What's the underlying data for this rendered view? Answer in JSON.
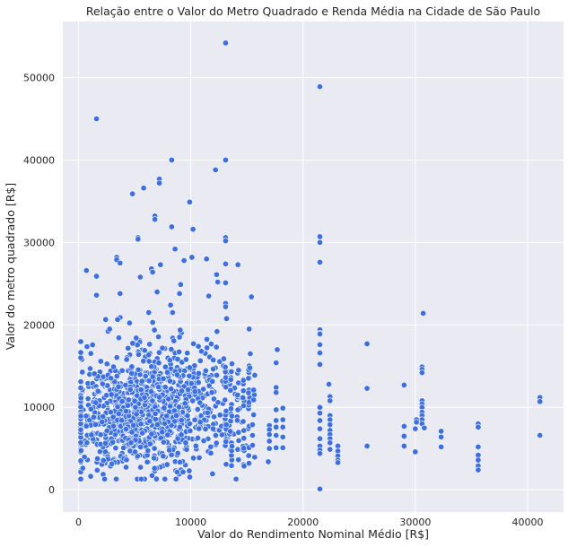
{
  "chart_data": {
    "type": "scatter",
    "title": "Relação entre o Valor do Metro Quadrado e Renda Média na Cidade de São Paulo",
    "xlabel": "Valor do Rendimento Nominal Médio [R$]",
    "ylabel": "Valor do metro quadrado [R$]",
    "xlim": [
      -1400,
      43200
    ],
    "ylim": [
      -2700,
      56800
    ],
    "x_ticks": [
      0,
      10000,
      20000,
      30000,
      40000
    ],
    "y_ticks": [
      0,
      10000,
      20000,
      30000,
      40000,
      50000
    ],
    "grid": true,
    "background": "#eaeaf2",
    "point_color": "#3b6fe8",
    "series": [
      {
        "points": [
          [
            13100,
            54200
          ],
          [
            21500,
            48900
          ],
          [
            1600,
            45000
          ],
          [
            8300,
            40000
          ],
          [
            13100,
            40000
          ],
          [
            12200,
            38800
          ],
          [
            7200,
            37700
          ],
          [
            7200,
            37200
          ],
          [
            5800,
            36600
          ],
          [
            4800,
            35900
          ],
          [
            9900,
            34900
          ],
          [
            6800,
            33200
          ],
          [
            6800,
            32800
          ],
          [
            8300,
            31900
          ],
          [
            10200,
            31600
          ],
          [
            5300,
            30600
          ],
          [
            5300,
            30400
          ],
          [
            13100,
            30600
          ],
          [
            13100,
            30200
          ],
          [
            21500,
            30700
          ],
          [
            21500,
            30000
          ],
          [
            8600,
            29200
          ],
          [
            10100,
            28200
          ],
          [
            11400,
            28000
          ],
          [
            3400,
            28200
          ],
          [
            3400,
            27900
          ],
          [
            9400,
            27800
          ],
          [
            3700,
            27500
          ],
          [
            13100,
            27400
          ],
          [
            14200,
            27300
          ],
          [
            7300,
            27300
          ],
          [
            6500,
            26800
          ],
          [
            6600,
            26400
          ],
          [
            12300,
            26100
          ],
          [
            21500,
            27600
          ],
          [
            700,
            26600
          ],
          [
            1600,
            25900
          ],
          [
            5500,
            25800
          ],
          [
            9100,
            24900
          ],
          [
            12400,
            25200
          ],
          [
            13100,
            25100
          ],
          [
            7000,
            24000
          ],
          [
            9000,
            23800
          ],
          [
            11600,
            23500
          ],
          [
            15400,
            23400
          ],
          [
            1600,
            23600
          ],
          [
            3700,
            23800
          ],
          [
            8200,
            22400
          ],
          [
            13100,
            22600
          ],
          [
            13100,
            22200
          ],
          [
            30700,
            21400
          ],
          [
            21500,
            19400
          ],
          [
            21500,
            19000
          ],
          [
            21500,
            18900
          ],
          [
            25700,
            17700
          ],
          [
            21500,
            17600
          ],
          [
            17700,
            17000
          ],
          [
            21500,
            16600
          ],
          [
            21500,
            15200
          ],
          [
            17600,
            15400
          ],
          [
            22300,
            12800
          ],
          [
            25700,
            12300
          ],
          [
            29000,
            12700
          ],
          [
            30600,
            14900
          ],
          [
            30600,
            14600
          ],
          [
            30600,
            14200
          ],
          [
            22400,
            11300
          ],
          [
            22400,
            10800
          ],
          [
            30600,
            10800
          ],
          [
            30600,
            10400
          ],
          [
            30600,
            10000
          ],
          [
            30600,
            9400
          ],
          [
            30600,
            9000
          ],
          [
            30600,
            8500
          ],
          [
            30600,
            8000
          ],
          [
            30100,
            8500
          ],
          [
            30100,
            8200
          ],
          [
            29000,
            7700
          ],
          [
            29000,
            6500
          ],
          [
            29000,
            5300
          ],
          [
            30000,
            7400
          ],
          [
            30000,
            4600
          ],
          [
            30800,
            7500
          ],
          [
            32300,
            7100
          ],
          [
            32300,
            6400
          ],
          [
            32300,
            5200
          ],
          [
            35600,
            8000
          ],
          [
            35600,
            7600
          ],
          [
            35600,
            5200
          ],
          [
            35600,
            4200
          ],
          [
            35600,
            3600
          ],
          [
            35600,
            2900
          ],
          [
            35600,
            2400
          ],
          [
            41100,
            11200
          ],
          [
            41100,
            10700
          ],
          [
            41100,
            6600
          ],
          [
            21500,
            10000
          ],
          [
            21500,
            9300
          ],
          [
            21500,
            8400
          ],
          [
            21500,
            7400
          ],
          [
            21500,
            6200
          ],
          [
            21500,
            5300
          ],
          [
            21500,
            4800
          ],
          [
            21500,
            4400
          ],
          [
            21500,
            100
          ],
          [
            22400,
            9000
          ],
          [
            22400,
            8500
          ],
          [
            22400,
            7900
          ],
          [
            22400,
            7200
          ],
          [
            22400,
            6700
          ],
          [
            22400,
            6200
          ],
          [
            22400,
            5700
          ],
          [
            22400,
            4900
          ],
          [
            23100,
            5300
          ],
          [
            23100,
            4700
          ],
          [
            23100,
            4100
          ],
          [
            23100,
            3600
          ],
          [
            23100,
            3300
          ],
          [
            25700,
            5300
          ],
          [
            17600,
            12400
          ],
          [
            17600,
            11800
          ],
          [
            17600,
            9700
          ],
          [
            17600,
            8400
          ],
          [
            17600,
            7600
          ],
          [
            17600,
            6600
          ],
          [
            17600,
            5100
          ],
          [
            18200,
            9900
          ],
          [
            18200,
            8500
          ],
          [
            18200,
            7600
          ],
          [
            18200,
            6400
          ],
          [
            18200,
            5100
          ],
          [
            17000,
            7800
          ],
          [
            17000,
            7300
          ],
          [
            17000,
            6700
          ],
          [
            17000,
            5900
          ],
          [
            17000,
            5000
          ],
          [
            16900,
            3400
          ],
          [
            15700,
            13900
          ],
          [
            15600,
            12100
          ],
          [
            15600,
            10900
          ],
          [
            15600,
            9100
          ],
          [
            15500,
            7900
          ],
          [
            15500,
            6600
          ],
          [
            15500,
            5400
          ],
          [
            15300,
            16500
          ],
          [
            15200,
            19500
          ]
        ]
      }
    ]
  }
}
